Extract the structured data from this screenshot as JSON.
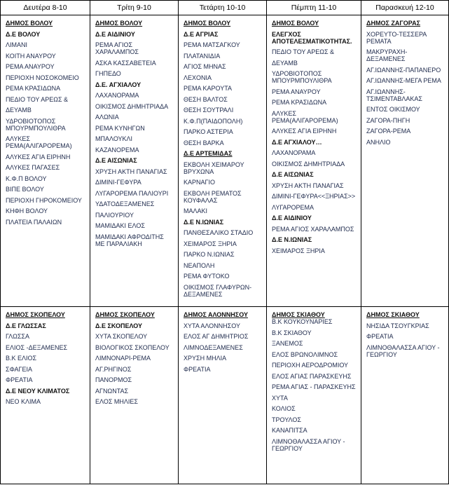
{
  "headers": [
    "Δευτέρα 8-10",
    "Τρίτη 9-10",
    "Τετάρτη 10-10",
    "Πέμπτη 11-10",
    "Παρασκευή 12-10"
  ],
  "rows": [
    [
      [
        {
          "t": "ΔΗΜΟΣ ΒΟΛΟΥ",
          "s": "u"
        },
        {
          "t": "Δ.Ε ΒΟΛΟΥ",
          "s": "b"
        },
        {
          "t": "ΛΙΜΑΝΙ",
          "s": ""
        },
        {
          "t": "ΚΟΙΤΗ ΑΝΑΥΡΟΥ",
          "s": ""
        },
        {
          "t": "ΡΕΜΑ ΑΝΑΥΡΟΥ",
          "s": ""
        },
        {
          "t": "ΠΕΡΙΟΧΗ ΝΟΣΟΚΟΜΕΙΟ",
          "s": ""
        },
        {
          "t": "ΡΕΜΑ ΚΡΑΣΙΔΩΝΑ",
          "s": ""
        },
        {
          "t": "ΠΕΔΙΟ ΤΟΥ ΑΡΕΩΣ &",
          "s": ""
        },
        {
          "t": "ΔΕΥΑΜΒ",
          "s": ""
        },
        {
          "t": "ΥΔΡΟΒΙΟΤΟΠΟΣ ΜΠΟΥΡΜΠΟΥΛΙΘΡΑ",
          "s": ""
        },
        {
          "t": "ΑΛΥΚΕΣ ΡΕΜΑ(ΑΛΙΓΑΡΟΡΕΜΑ)",
          "s": ""
        },
        {
          "t": "ΑΛΥΚΕΣ ΑΓΙΑ ΕΙΡΗΝΗ",
          "s": ""
        },
        {
          "t": "ΑΛΥΚΕΣ ΠΑΓΑΣΕΣ",
          "s": ""
        },
        {
          "t": "Κ.Φ.Π ΒΟΛΟΥ",
          "s": ""
        },
        {
          "t": "ΒΙΠΕ ΒΟΛΟΥ",
          "s": ""
        },
        {
          "t": "ΠΕΡΙΟΧΗ ΓΗΡΟΚΟΜΕΙΟΥ",
          "s": ""
        },
        {
          "t": "ΚΗΦΗ ΒΟΛΟΥ",
          "s": ""
        },
        {
          "t": "ΠΛΑΤΕΙΑ ΠΑΛΑΙΩΝ",
          "s": ""
        }
      ],
      [
        {
          "t": "ΔΗΜΟΣ ΒΟΛΟΥ",
          "s": "u"
        },
        {
          "t": "Δ.Ε ΑΙΔΙΝΙΟΥ",
          "s": "b"
        },
        {
          "t": "ΡΕΜΑ ΑΓΙΟΣ ΧΑΡΑΛΑΜΠΟΣ",
          "s": ""
        },
        {
          "t": "ΑΣΚΑ ΚΑΣΣΑΒΕΤΕΙΑ",
          "s": ""
        },
        {
          "t": "ΓΗΠΕΔΟ",
          "s": ""
        },
        {
          "t": "Δ.Ε. ΑΓΧΙΑΛΟΥ",
          "s": "b"
        },
        {
          "t": "ΛΑΧΑΝΟΡΑΜΑ",
          "s": ""
        },
        {
          "t": "ΟΙΚΙΣΜΟΣ ΔΗΜΗΤΡΙΑΔΑ",
          "s": ""
        },
        {
          "t": "ΑΛΩΝΙΑ",
          "s": ""
        },
        {
          "t": "ΡΕΜΑ ΚΥΝΗΓΩΝ",
          "s": ""
        },
        {
          "t": "ΜΠΑΛΟΥΚΛΙ",
          "s": ""
        },
        {
          "t": "ΚΑΖΑΝΟΡΕΜΑ",
          "s": ""
        },
        {
          "t": "Δ.Ε ΑΙΣΩΝΙΑΣ",
          "s": "b"
        },
        {
          "t": "ΧΡΥΣΗ ΑΚΤΗ ΠΑΝΑΓΙΑΣ",
          "s": ""
        },
        {
          "t": "ΔΙΜΙΝΙ-ΓΕΦΥΡΑ",
          "s": ""
        },
        {
          "t": "ΛΥΓΑΡΟΡΕΜΑ ΠΑΛΙΟΥΡΙ",
          "s": ""
        },
        {
          "t": "ΥΔΑΤΟΔΕΞΑΜΕΝΕΣ",
          "s": ""
        },
        {
          "t": "ΠΑΛΙΟΥΡΙΟΥ",
          "s": ""
        },
        {
          "t": "ΜΑΜΙΔΑΚΙ ΕΛΟΣ",
          "s": ""
        },
        {
          "t": "ΜΑΜΙΔΑΚΙ ΑΦΡΟΔΙΤΗΣ ΜΕ ΠΑΡΑΛΙΑΚΗ",
          "s": ""
        }
      ],
      [
        {
          "t": "ΔΗΜΟΣ ΒΟΛΟΥ",
          "s": "u"
        },
        {
          "t": "Δ.Ε ΑΓΡΙΑΣ",
          "s": "b"
        },
        {
          "t": "ΡΕΜΑ ΜΑΤΣΑΓΚΟΥ",
          "s": ""
        },
        {
          "t": "ΠΛΑΤΑΝΙΔΙΑ",
          "s": ""
        },
        {
          "t": "ΑΓΙΟΣ ΜΗΝΑΣ",
          "s": ""
        },
        {
          "t": "ΛΕΧΟΝΙΑ",
          "s": ""
        },
        {
          "t": "ΡΕΜΑ ΚΑΡΟΥΤΑ",
          "s": ""
        },
        {
          "t": "ΘΕΣΗ ΒΑΛΤΟΣ",
          "s": ""
        },
        {
          "t": "ΘΕΣΗ ΣΟΥΤΡΑΛΙ",
          "s": ""
        },
        {
          "t": "Κ.Φ.Π(ΠΑΙΔΟΠΟΛΗ)",
          "s": ""
        },
        {
          "t": "ΠΑΡΚΟ ΑΣΤΕΡΙΑ",
          "s": ""
        },
        {
          "t": "ΘΕΣΗ ΒΑΡΚΑ",
          "s": ""
        },
        {
          "t": "Δ.Ε ΑΡΤΕΜΙΔΑΣ",
          "s": "u"
        },
        {
          "t": "ΕΚΒΟΛΗ ΧΕΙΜΑΡΟΥ ΒΡΥΧΩΝΑ",
          "s": ""
        },
        {
          "t": "ΚΑΡΝΑΓΙΟ",
          "s": ""
        },
        {
          "t": "ΕΚΒΟΛΗ ΡΕΜΑΤΟΣ ΚΟΥΦΑΛΑΣ",
          "s": ""
        },
        {
          "t": "ΜΑΛΑΚΙ",
          "s": ""
        },
        {
          "t": "Δ.Ε Ν.ΙΩΝΙΑΣ",
          "s": "b"
        },
        {
          "t": "ΠΑΝΘΕΣΑΛΙΚΟ ΣΤΑΔΙΟ",
          "s": ""
        },
        {
          "t": "ΧΕΙΜΑΡΟΣ ΞΗΡΙΑ",
          "s": ""
        },
        {
          "t": "ΠΑΡΚΟ Ν.ΙΩΝΙΑΣ",
          "s": ""
        },
        {
          "t": "ΝΕΑΠΟΛΗ",
          "s": ""
        },
        {
          "t": "ΡΕΜΑ ΦΥΤΟΚΟ",
          "s": ""
        },
        {
          "t": "ΟΙΚΙΣΜΟΣ ΓΛΑΦΥΡΩΝ-ΔΕΞΑΜΕΝΕΣ",
          "s": ""
        }
      ],
      [
        {
          "t": "ΔΗΜΟΣ ΒΟΛΟΥ",
          "s": "u"
        },
        {
          "t": "ΕΛΕΓΧΟΣ ΑΠΟΤΕΛΕΣΜΑΤΙΚΟΤΗΤΑΣ.",
          "s": "b"
        },
        {
          "t": "ΠΕΔΙΟ ΤΟΥ ΑΡΕΩΣ &",
          "s": ""
        },
        {
          "t": "ΔΕΥΑΜΒ",
          "s": ""
        },
        {
          "t": "ΥΔΡΟΒΙΟΤΟΠΟΣ ΜΠΟΥΡΜΠΟΥΛΙΘΡΑ",
          "s": ""
        },
        {
          "t": "ΡΕΜΑ ΑΝΑΥΡΟΥ",
          "s": ""
        },
        {
          "t": "ΡΕΜΑ ΚΡΑΣΙΔΩΝΑ",
          "s": ""
        },
        {
          "t": "ΑΛΥΚΕΣ ΡΕΜΑ(ΑΛΙΓΑΡΟΡΕΜΑ)",
          "s": ""
        },
        {
          "t": "ΑΛΥΚΕΣ ΑΓΙΑ ΕΙΡΗΝΗ",
          "s": ""
        },
        {
          "t": "Δ.Ε ΑΓΧΙΑΛΟΥ…",
          "s": "b"
        },
        {
          "t": "ΛΑΧΑΝΟΡΑΜΑ",
          "s": ""
        },
        {
          "t": "ΟΙΚΙΣΜΟΣ ΔΗΜΗΤΡΙΑΔΑ",
          "s": ""
        },
        {
          "t": "Δ.Ε ΑΙΣΩΝΙΑΣ",
          "s": "b"
        },
        {
          "t": "ΧΡΥΣΗ ΑΚΤΗ ΠΑΝΑΓΙΑΣ",
          "s": ""
        },
        {
          "t": "ΔΙΜΙΝΙ-ΓΕΦΥΡΑ<<ΞΗΡΙΑΣ>>",
          "s": ""
        },
        {
          "t": "ΛΥΓΑΡΟΡΕΜΑ",
          "s": ""
        },
        {
          "t": "Δ.Ε ΑΙΔΙΝΙΟΥ",
          "s": "b"
        },
        {
          "t": "ΡΕΜΑ ΑΓΙΟΣ ΧΑΡΑΛΑΜΠΟΣ",
          "s": ""
        },
        {
          "t": "Δ.Ε Ν.ΙΩΝΙΑΣ",
          "s": "b"
        },
        {
          "t": "ΧΕΙΜΑΡΟΣ ΞΗΡΙΑ",
          "s": ""
        }
      ],
      [
        {
          "t": "ΔΗΜΟΣ ΖΑΓΟΡΑΣ",
          "s": "u"
        },
        {
          "t": "ΧΟΡΕΥΤΟ-ΤΕΣΣΕΡΑ ΡΕΜΑΤΑ",
          "s": ""
        },
        {
          "t": "ΜΑΚΡΥΡΑΧΗ-ΔΕΞΑΜΕΝΕΣ",
          "s": ""
        },
        {
          "t": "ΑΓ.ΙΩΑΝΝΗΣ-ΠΑΠΑΝΕΡΟ",
          "s": ""
        },
        {
          "t": "ΑΓ.ΙΩΑΝΝΗΣ-ΜΕΓΑ ΡΕΜΑ",
          "s": ""
        },
        {
          "t": "ΑΓ.ΙΩΑΝΝΗΣ-ΤΣΙΜΕΝΤΑΒΛΑΚΑΣ",
          "s": ""
        },
        {
          "t": "ΕΝΤΟΣ ΟΙΚΙΣΜΟΥ",
          "s": ""
        },
        {
          "t": "ΖΑΓΟΡΑ-ΠΗΓΗ",
          "s": ""
        },
        {
          "t": "ΖΑΓΟΡΑ-ΡΕΜΑ",
          "s": ""
        },
        {
          "t": "ΑΝΗΛΙΟ",
          "s": ""
        }
      ]
    ],
    [
      [
        {
          "t": "ΔΗΜΟΣ ΣΚΟΠΕΛΟΥ",
          "s": "u"
        },
        {
          "t": "Δ.Ε ΓΛΩΣΣΑΣ",
          "s": "b"
        },
        {
          "t": "ΓΛΩΣΣΑ",
          "s": ""
        },
        {
          "t": "ΕΛΙΟΣ -ΔΕΞΑΜΕΝΕΣ",
          "s": ""
        },
        {
          "t": "Β.Κ ΕΛΙΟΣ",
          "s": ""
        },
        {
          "t": "ΣΦΑΓΕΙΑ",
          "s": ""
        },
        {
          "t": "ΦΡΕΑΤΙΑ",
          "s": ""
        },
        {
          "t": "Δ.Ε ΝΕΟΥ ΚΛΙΜΑΤΟΣ",
          "s": "b"
        },
        {
          "t": "ΝΕΟ ΚΛΙΜΑ",
          "s": ""
        }
      ],
      [
        {
          "t": "ΔΗΜΟΣ ΣΚΟΠΕΛΟΥ",
          "s": "u"
        },
        {
          "t": "Δ.Ε ΣΚΟΠΕΛΟΥ",
          "s": "b"
        },
        {
          "t": "ΧΥΤΑ ΣΚΟΠΕΛΟΥ",
          "s": ""
        },
        {
          "t": "ΒΙΟΛΟΓΙΚΟΣ ΣΚΟΠΕΛΟΥ",
          "s": ""
        },
        {
          "t": "ΛΙΜΝΟΝΑΡΙ-ΡΕΜΑ",
          "s": ""
        },
        {
          "t": "ΑΓ.ΡΗΓΙΝΟΣ",
          "s": ""
        },
        {
          "t": "ΠΑΝΟΡΜΟΣ",
          "s": ""
        },
        {
          "t": "ΑΓΝΩΝΤΑΣ",
          "s": ""
        },
        {
          "t": " ΕΛΟΣ ΜΗΛΙΕΣ",
          "s": ""
        }
      ],
      [
        {
          "t": "ΔΗΜΟΣ ΑΛΟΝΝΗΣΟΥ",
          "s": "u"
        },
        {
          "t": "ΧΥΤΑ ΑΛΟΝΝΗΣΟΥ",
          "s": ""
        },
        {
          "t": "ΕΛΟΣ ΑΓ ΔΗΜΗΤΡΙΟΣ",
          "s": ""
        },
        {
          "t": "ΛΙΜΝΟΔΕΞΑΜΕΝΕΣ",
          "s": ""
        },
        {
          "t": "ΧΡΥΣΗ ΜΗΛΙΑ",
          "s": ""
        },
        {
          "t": "ΦΡΕΑΤΙΑ",
          "s": ""
        }
      ],
      [
        {
          "t": "ΔΗΜΟΣ ΣΚΙΑΘΟΥ",
          "s": "u"
        },
        {
          "t": "Β.Κ ΚΟΥΚΟΥΝΑΡΙΕΣ",
          "s": ""
        },
        {
          "t": "Β.Κ ΣΚΙΑΘΟΥ",
          "s": ""
        },
        {
          "t": "ΞΑΝΕΜΟΣ",
          "s": ""
        },
        {
          "t": "ΕΛΟΣ ΒΡΩΝΟΛΙΜΝΟΣ",
          "s": ""
        },
        {
          "t": "ΠΕΡΙΟΧΗ ΑΕΡΟΔΡΟΜΙΟΥ",
          "s": ""
        },
        {
          "t": "ΕΛΟΣ ΑΓΙΑΣ ΠΑΡΑΣΚΕΥΗΣ",
          "s": ""
        },
        {
          "t": "ΡΕΜΑ ΑΓΙΑΣ - ΠΑΡΑΣΚΕΥΗΣ",
          "s": ""
        },
        {
          "t": "ΧΥΤΑ",
          "s": ""
        },
        {
          "t": "ΚΟΛΙΟΣ",
          "s": ""
        },
        {
          "t": "ΤΡΟΥΛΟΣ",
          "s": ""
        },
        {
          "t": "ΚΑΝΑΠΙΤΣΑ",
          "s": ""
        },
        {
          "t": "ΛΙΜΝΟΘΑΛΑΣΣΑ ΑΓΙΟΥ - ΓΕΩΡΓΙΟΥ",
          "s": ""
        }
      ],
      [
        {
          "t": "ΔΗΜΟΣ ΣΚΙΑΘΟΥ",
          "s": "u"
        },
        {
          "t": "ΝΗΣΙΔΑ ΤΣΟΥΓΚΡΙΑΣ",
          "s": ""
        },
        {
          "t": "ΦΡΕΑΤΙΑ",
          "s": ""
        },
        {
          "t": "ΛΙΜΝΟΘΑΛΑΣΣΑ ΑΓΙΟΥ - ΓΕΩΡΓΙΟΥ",
          "s": ""
        }
      ]
    ]
  ]
}
